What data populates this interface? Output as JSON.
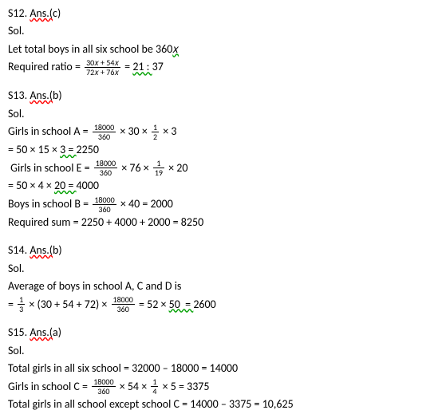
{
  "font": {
    "family": "Calibri",
    "size_pt": 14,
    "frac_size_pt": 10,
    "color": "#000000"
  },
  "decorations": {
    "wavy_red": "#ff0000",
    "wavy_green": "#00a000"
  },
  "s12": {
    "header_prefix": "S12. ",
    "header_ans": "Ans.(",
    "header_letter": "c)",
    "sol_label": "Sol.",
    "line1_a": "Let total boys in all six school be 360",
    "line1_b": "𝑥",
    "ratio_label": "Required ratio = ",
    "frac_num": "30𝑥 + 54𝑥",
    "frac_den": "72𝑥 + 76𝑥",
    "ratio_eq": " = ",
    "ratio_val": "21 : ",
    "ratio_37": "37"
  },
  "s13": {
    "header_prefix": "S13. ",
    "header_ans": "Ans.(",
    "header_letter": "b)",
    "sol_label": "Sol.",
    "ga_label": "Girls in school A = ",
    "ga_f1_num": "18000",
    "ga_f1_den": "360",
    "ga_mid1": " × 30 × ",
    "ga_f2_num": "1",
    "ga_f2_den": "2",
    "ga_tail": " × 3",
    "ga_eq_a": "= 50 × 15 × ",
    "ga_eq_b": "3  = ",
    "ga_eq_c": "2250",
    "ge_label": " Girls in school E = ",
    "ge_f1_num": "18000",
    "ge_f1_den": "360",
    "ge_mid1": " × 76 × ",
    "ge_f2_num": "1",
    "ge_f2_den": "19",
    "ge_tail": " × 20",
    "ge_eq_a": "= 50 × 4 × ",
    "ge_eq_b": "20  = ",
    "ge_eq_c": "4000",
    "bb_label": "Boys in school B = ",
    "bb_f_num": "18000",
    "bb_f_den": "360",
    "bb_tail": " × 40 = 2000",
    "req_sum": "Required sum = 2250 + 4000 + 2000 = 8250"
  },
  "s14": {
    "header_prefix": "S14. ",
    "header_ans": "Ans.(",
    "header_letter": "b)",
    "sol_label": "Sol.",
    "avg_label": "Average of boys in school A, C and D is",
    "eq_a": "= ",
    "f1_num": "1",
    "f1_den": "3",
    "eq_b": " × (30 + 54 + 72) × ",
    "f2_num": "18000",
    "f2_den": "360",
    "eq_c": " = 52 × ",
    "eq_d": "50  = ",
    "eq_e": "2600"
  },
  "s15": {
    "header_prefix": "S15. ",
    "header_ans": "Ans.(",
    "header_letter": "a)",
    "sol_label": "Sol.",
    "tg_line": "Total girls in all six school = 32000 – 18000 = 14000",
    "gc_label": "Girls in school C = ",
    "gc_f1_num": "18000",
    "gc_f1_den": "360",
    "gc_mid": " × 54 × ",
    "gc_f2_num": "1",
    "gc_f2_den": "4",
    "gc_tail": " × 5 = 3375",
    "except_line": "Total girls in all school except school C = 14000 – 3375 = 10,625"
  }
}
